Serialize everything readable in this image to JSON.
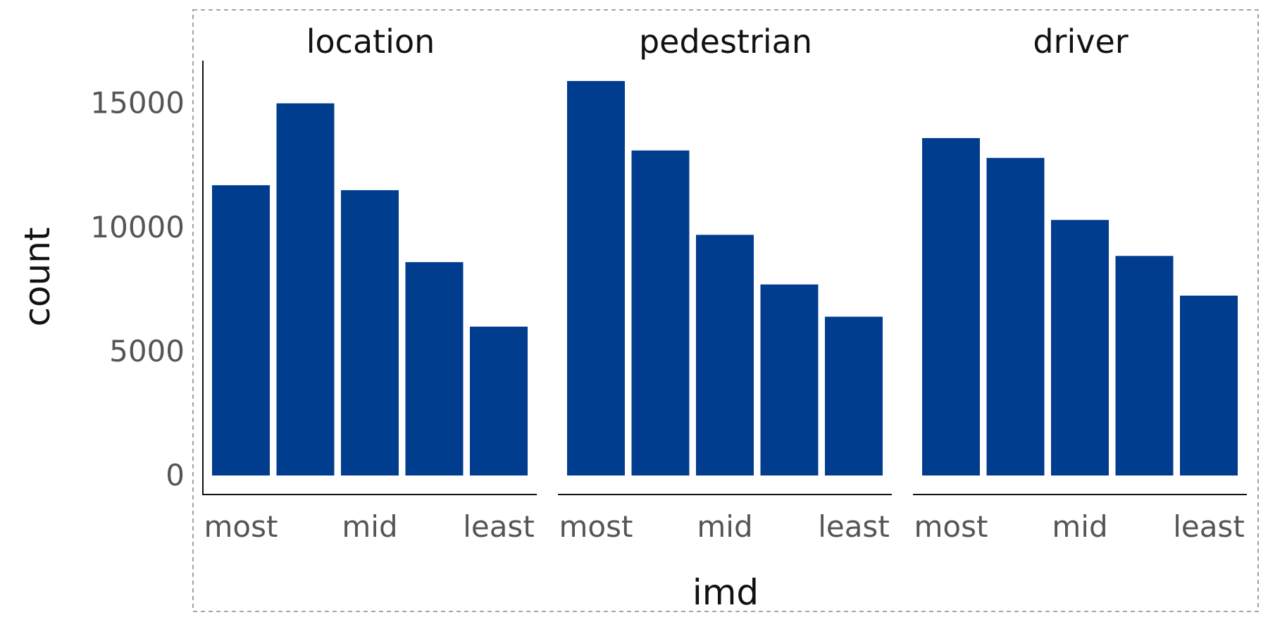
{
  "chart_data": {
    "type": "bar",
    "xlabel": "imd",
    "ylabel": "count",
    "ylim": [
      0,
      16500
    ],
    "y_ticks": [
      0,
      5000,
      10000,
      15000
    ],
    "y_tick_labels": [
      "0",
      "5000",
      "10000",
      "15000"
    ],
    "x_tick_labels": [
      "most",
      "mid",
      "least"
    ],
    "x_tick_positions": [
      1,
      3,
      5
    ],
    "categories": [
      1,
      2,
      3,
      4,
      5
    ],
    "color": "#003D8F",
    "grid": false,
    "legend": "none",
    "facets": [
      {
        "title": "location",
        "values": [
          11700,
          15000,
          11500,
          8600,
          6000
        ]
      },
      {
        "title": "pedestrian",
        "values": [
          15900,
          13100,
          9700,
          7700,
          6400
        ]
      },
      {
        "title": "driver",
        "values": [
          13600,
          12800,
          10300,
          8850,
          7250
        ]
      }
    ]
  }
}
